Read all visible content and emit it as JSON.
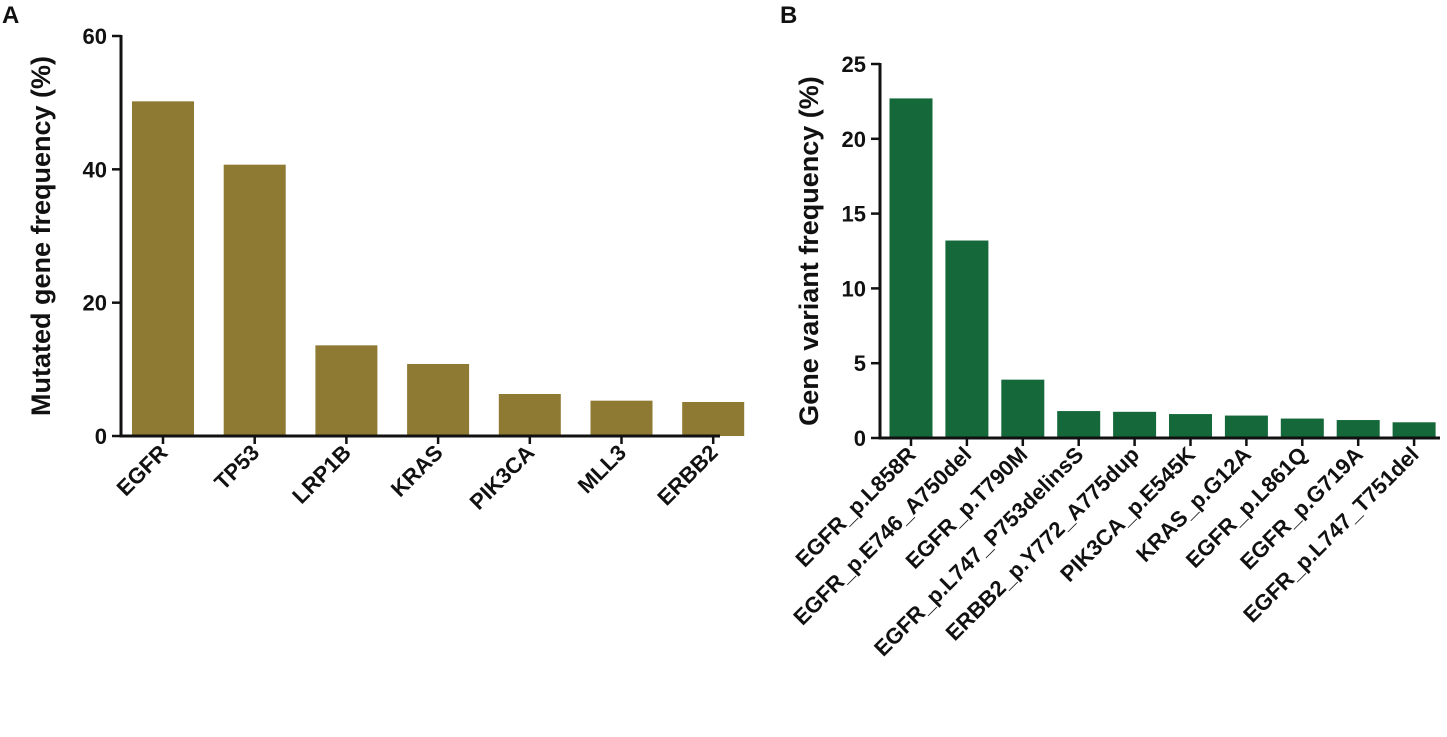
{
  "panels": [
    {
      "letter": "A"
    },
    {
      "letter": "B"
    }
  ],
  "chart_data": [
    {
      "type": "bar",
      "panel": "A",
      "categories": [
        "EGFR",
        "TP53",
        "LRP1B",
        "KRAS",
        "PIK3CA",
        "MLL3",
        "ERBB2"
      ],
      "values": [
        50.2,
        40.7,
        13.6,
        10.8,
        6.3,
        5.3,
        5.1
      ],
      "title": "",
      "xlabel": "",
      "ylabel": "Mutated gene frequency (%)",
      "ylim": [
        0,
        60
      ],
      "yticks": [
        0,
        20,
        40,
        60
      ],
      "grid": false,
      "color": "#8f7a33"
    },
    {
      "type": "bar",
      "panel": "B",
      "categories": [
        "EGFR_p.L858R",
        "EGFR_p.E746_A750del",
        "EGFR_p.T790M",
        "EGFR_p.L747_P753delinsS",
        "ERBB2_p.Y772_A775dup",
        "PIK3CA_p.E545K",
        "KRAS_p.G12A",
        "EGFR_p.L861Q",
        "EGFR_p.G719A",
        "EGFR_p.L747_T751del"
      ],
      "values": [
        22.7,
        13.2,
        3.9,
        1.8,
        1.75,
        1.6,
        1.5,
        1.3,
        1.2,
        1.05
      ],
      "title": "",
      "xlabel": "",
      "ylabel": "Gene variant frequency (%)",
      "ylim": [
        0,
        25
      ],
      "yticks": [
        0,
        5,
        10,
        15,
        20,
        25
      ],
      "grid": false,
      "color": "#14683a"
    }
  ]
}
